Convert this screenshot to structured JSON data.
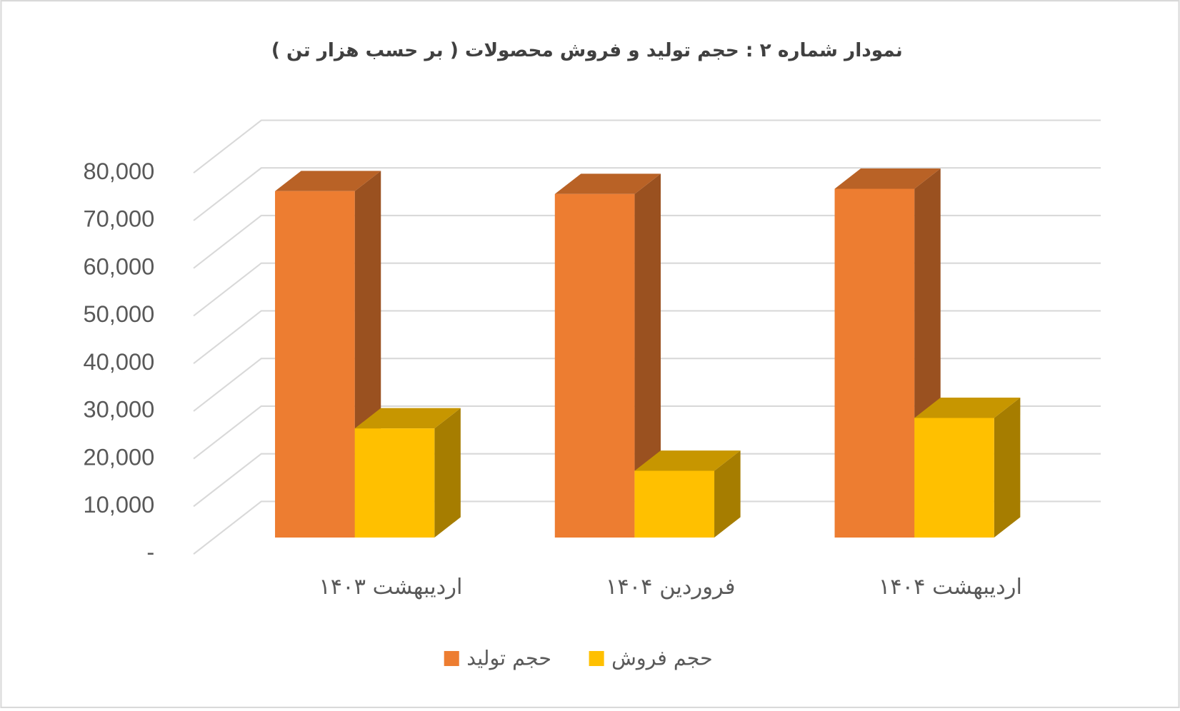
{
  "chart_data": {
    "type": "bar3d",
    "title": "نمودار شماره ۲ : حجم  تولید و فروش محصولات ( بر حسب هزار تن )",
    "categories": [
      "اردیبهشت ۱۴۰۳",
      "فروردین ۱۴۰۴",
      "اردیبهشت ۱۴۰۴"
    ],
    "series": [
      {
        "name": "حجم تولید",
        "color": "#ED7D31",
        "values": [
          72700,
          72100,
          73200
        ]
      },
      {
        "name": "حجم فروش",
        "color": "#FFC000",
        "values": [
          22900,
          14000,
          25100
        ]
      }
    ],
    "ylim": [
      0,
      80000
    ],
    "yticks": [
      {
        "value": 0,
        "label": "-"
      },
      {
        "value": 10000,
        "label": "10,000"
      },
      {
        "value": 20000,
        "label": "20,000"
      },
      {
        "value": 30000,
        "label": "30,000"
      },
      {
        "value": 40000,
        "label": "40,000"
      },
      {
        "value": 50000,
        "label": "50,000"
      },
      {
        "value": 60000,
        "label": "60,000"
      },
      {
        "value": 70000,
        "label": "70,000"
      },
      {
        "value": 80000,
        "label": "80,000"
      }
    ],
    "grid": true
  }
}
